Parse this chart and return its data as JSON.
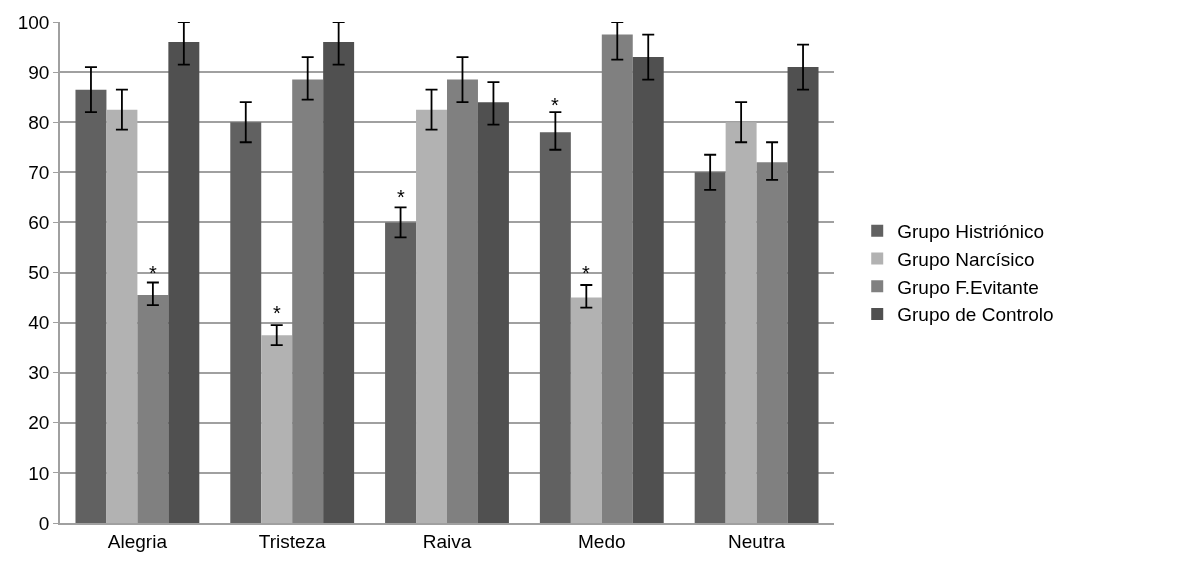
{
  "chart_data": {
    "type": "bar",
    "categories": [
      "Alegria",
      "Tristeza",
      "Raiva",
      "Medo",
      "Neutra"
    ],
    "series": [
      {
        "name": "Grupo Histriónico",
        "color": "#616161",
        "values": [
          86.5,
          80,
          60,
          78,
          70
        ],
        "errors": [
          [
            82,
            91
          ],
          [
            76,
            84
          ],
          [
            57,
            63
          ],
          [
            74.5,
            82
          ],
          [
            66.5,
            73.5
          ]
        ]
      },
      {
        "name": "Grupo Narcísico",
        "color": "#b2b2b2",
        "values": [
          82.5,
          37.5,
          82.5,
          45,
          80
        ],
        "errors": [
          [
            78.5,
            86.5
          ],
          [
            35.5,
            39.5
          ],
          [
            78.5,
            86.5
          ],
          [
            43,
            47.5
          ],
          [
            76,
            84
          ]
        ]
      },
      {
        "name": "Grupo F.Evitante",
        "color": "#808080",
        "values": [
          45.5,
          88.5,
          88.5,
          97.5,
          72
        ],
        "errors": [
          [
            43.5,
            48
          ],
          [
            84.5,
            93
          ],
          [
            84,
            93
          ],
          [
            92.5,
            100
          ],
          [
            68.5,
            76
          ]
        ]
      },
      {
        "name": "Grupo de Controlo",
        "color": "#505050",
        "values": [
          96,
          96,
          84,
          93,
          91
        ],
        "errors": [
          [
            91.5,
            100
          ],
          [
            91.5,
            100
          ],
          [
            79.5,
            88
          ],
          [
            88.5,
            97.5
          ],
          [
            86.5,
            95.5
          ]
        ]
      }
    ],
    "ylim": [
      0,
      100
    ],
    "yticks": [
      0,
      10,
      20,
      30,
      40,
      50,
      60,
      70,
      80,
      90,
      100
    ],
    "grid": "y",
    "legend": "right",
    "annotations": [
      {
        "text": "*",
        "x": "Alegria",
        "y": 50
      },
      {
        "text": "*",
        "x": "Tristeza",
        "y": 42
      },
      {
        "text": "*",
        "x": "Raiva",
        "y": 65
      },
      {
        "text": "*",
        "x": "Medo",
        "y": 83.5
      },
      {
        "text": "*",
        "x": "Medo",
        "y": 50
      }
    ]
  }
}
